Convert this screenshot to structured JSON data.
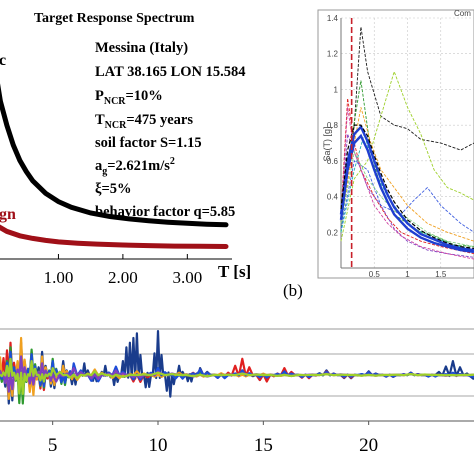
{
  "colors": {
    "background": "#ffffff",
    "elastic_curve": "#000000",
    "design_curve": "#a01018",
    "mean_spectrum": "#1f3fd0",
    "target_line": "#c8202a",
    "grid": "#c8c8c8",
    "accel_series": [
      "#1a3c8c",
      "#1d4ed8",
      "#e02020",
      "#2e9a2e",
      "#f0a020",
      "#9ed02a",
      "#8040c0",
      "#0e5a7a"
    ]
  },
  "panel_a": {
    "title": "Target Response Spectrum",
    "curve_label_elastic": "c",
    "curve_label_design": "gn",
    "info_lines": [
      "Messina (Italy)",
      "LAT 38.165 LON 15.584",
      "P_NCR=10%",
      "T_NCR=475 years",
      "soil factor S=1.15",
      "a_g=2.621m/s^2",
      "ξ=5%",
      "behavior factor q=5.85"
    ],
    "info_render": {
      "line1": "Messina (Italy)",
      "line2": "LAT 38.165 LON 15.584",
      "line3_main": "P",
      "line3_sub": "NCR",
      "line3_rest": "=10%",
      "line4_main": "T",
      "line4_sub": "NCR",
      "line4_rest": "=475 years",
      "line5": "soil factor S=1.15",
      "line6_main": "a",
      "line6_sub": "g",
      "line6_rest": "=2.621m/s",
      "line6_sup": "2",
      "line7": "ξ=5%",
      "line8": "behavior factor q=5.85"
    },
    "xlabel": "T  [s]",
    "tick_labels": [
      "1.00",
      "2.00",
      "3.00"
    ],
    "panel_letter": "(b)"
  },
  "panel_b": {
    "ylabel": "Sa(T) [g]",
    "legend_text": "Com",
    "tick_labels": [
      "1.4",
      "1.2",
      "1",
      "0.8",
      "0.6",
      "0.4",
      "0.2"
    ],
    "x_tick_labels": [
      "0.5",
      "1",
      "1.5"
    ]
  },
  "panel_c": {
    "tick_labels": [
      "5",
      "10",
      "15",
      "20"
    ]
  },
  "chart_data": [
    {
      "type": "line",
      "title": "Target Response Spectrum",
      "xlabel": "T [s]",
      "ylabel": "",
      "x_ticks": [
        1.0,
        2.0,
        3.0
      ],
      "xlim": [
        0,
        3.6
      ],
      "ylim": [
        0,
        1.0
      ],
      "series": [
        {
          "name": "",
          "style": "elastic",
          "x": [
            0.0,
            0.1,
            0.2,
            0.3,
            0.4,
            0.5,
            0.6,
            0.8,
            1.0,
            1.2,
            1.5,
            1.8,
            2.1,
            2.4,
            2.7,
            3.0,
            3.3,
            3.6
          ],
          "y": [
            0.9,
            0.72,
            0.61,
            0.52,
            0.45,
            0.4,
            0.357,
            0.3,
            0.262,
            0.236,
            0.21,
            0.194,
            0.183,
            0.175,
            0.168,
            0.163,
            0.159,
            0.156
          ]
        },
        {
          "name": "",
          "style": "design",
          "x": [
            0.0,
            0.2,
            0.4,
            0.6,
            0.8,
            1.0,
            1.3,
            1.6,
            2.0,
            2.4,
            2.8,
            3.2,
            3.6
          ],
          "y": [
            0.16,
            0.126,
            0.106,
            0.094,
            0.085,
            0.078,
            0.072,
            0.068,
            0.064,
            0.061,
            0.059,
            0.058,
            0.057
          ]
        }
      ]
    },
    {
      "type": "line",
      "title": "",
      "xlabel": "",
      "ylabel": "Sa(T) [g]",
      "legend": "top-right",
      "legend_text": "Com",
      "xlim": [
        0,
        2.0
      ],
      "ylim": [
        0,
        1.4
      ],
      "y_ticks": [
        0.2,
        0.4,
        0.6,
        0.8,
        1.0,
        1.2,
        1.4
      ],
      "x_ticks": [
        0.5,
        1.0,
        1.5
      ],
      "target_period_line_x": 0.16,
      "series": [
        {
          "name": "",
          "style": "mean",
          "x": [
            0.0,
            0.1,
            0.2,
            0.3,
            0.4,
            0.5,
            0.6,
            0.7,
            0.8,
            1.0,
            1.2,
            1.4,
            1.6,
            1.8,
            2.0
          ],
          "y": [
            0.27,
            0.55,
            0.7,
            0.74,
            0.66,
            0.55,
            0.45,
            0.37,
            0.3,
            0.22,
            0.17,
            0.14,
            0.12,
            0.1,
            0.09
          ]
        },
        {
          "name": "",
          "style": "mean",
          "x": [
            0.0,
            0.1,
            0.2,
            0.3,
            0.4,
            0.5,
            0.6,
            0.7,
            0.8,
            1.0,
            1.2,
            1.4,
            1.6,
            1.8,
            2.0
          ],
          "y": [
            0.3,
            0.6,
            0.75,
            0.79,
            0.71,
            0.6,
            0.5,
            0.41,
            0.34,
            0.25,
            0.19,
            0.16,
            0.13,
            0.11,
            0.1
          ]
        },
        {
          "name": "",
          "style": "target",
          "x": [
            0.0,
            0.1,
            0.2,
            0.3,
            0.4,
            0.5,
            0.6,
            0.7,
            0.8,
            1.0,
            1.2,
            1.4,
            1.6,
            1.8,
            2.0
          ],
          "y": [
            0.33,
            0.66,
            0.8,
            0.8,
            0.74,
            0.63,
            0.53,
            0.44,
            0.37,
            0.27,
            0.21,
            0.17,
            0.14,
            0.12,
            0.11
          ]
        },
        {
          "name": "",
          "style": "record",
          "color": "#1a1a1a",
          "x": [
            0.0,
            0.2,
            0.3,
            0.4,
            0.6,
            0.8,
            1.0,
            1.2,
            1.5,
            1.8,
            2.0
          ],
          "y": [
            0.25,
            0.8,
            1.35,
            1.1,
            0.85,
            0.8,
            0.78,
            0.72,
            0.7,
            0.66,
            0.7
          ]
        },
        {
          "name": "",
          "style": "record",
          "color": "#2e9a2e",
          "x": [
            0.0,
            0.15,
            0.3,
            0.45,
            0.6,
            0.8,
            1.0,
            1.2,
            1.4,
            1.7,
            2.0
          ],
          "y": [
            0.2,
            0.7,
            1.05,
            0.65,
            0.45,
            0.3,
            0.25,
            0.2,
            0.18,
            0.13,
            0.12
          ]
        },
        {
          "name": "",
          "style": "record",
          "color": "#9ed02a",
          "x": [
            0.0,
            0.2,
            0.4,
            0.6,
            0.8,
            1.0,
            1.2,
            1.4,
            1.6,
            1.8,
            2.0
          ],
          "y": [
            0.15,
            0.5,
            0.6,
            0.85,
            1.1,
            0.9,
            0.75,
            0.55,
            0.45,
            0.42,
            0.38
          ]
        },
        {
          "name": "",
          "style": "record",
          "color": "#e02020",
          "x": [
            0.0,
            0.1,
            0.2,
            0.3,
            0.5,
            0.7,
            0.9,
            1.2,
            1.5,
            2.0
          ],
          "y": [
            0.3,
            0.95,
            0.7,
            0.55,
            0.4,
            0.28,
            0.2,
            0.15,
            0.12,
            0.08
          ]
        },
        {
          "name": "",
          "style": "record",
          "color": "#f0a020",
          "x": [
            0.0,
            0.15,
            0.3,
            0.45,
            0.6,
            0.8,
            1.0,
            1.3,
            1.6,
            2.0
          ],
          "y": [
            0.25,
            0.6,
            0.9,
            0.7,
            0.55,
            0.45,
            0.35,
            0.25,
            0.2,
            0.15
          ]
        },
        {
          "name": "",
          "style": "record",
          "color": "#8040c0",
          "x": [
            0.0,
            0.1,
            0.25,
            0.4,
            0.6,
            0.8,
            1.0,
            1.3,
            1.6,
            2.0
          ],
          "y": [
            0.3,
            0.75,
            0.6,
            0.45,
            0.35,
            0.22,
            0.15,
            0.1,
            0.08,
            0.06
          ]
        },
        {
          "name": "",
          "style": "record",
          "color": "#20b0b0",
          "x": [
            0.0,
            0.2,
            0.35,
            0.5,
            0.7,
            0.9,
            1.1,
            1.4,
            1.7,
            2.0
          ],
          "y": [
            0.2,
            0.55,
            0.75,
            0.55,
            0.4,
            0.3,
            0.22,
            0.17,
            0.13,
            0.1
          ]
        },
        {
          "name": "",
          "style": "record",
          "color": "#d040a0",
          "x": [
            0.0,
            0.1,
            0.2,
            0.35,
            0.5,
            0.7,
            0.9,
            1.2,
            1.6,
            2.0
          ],
          "y": [
            0.28,
            0.9,
            0.65,
            0.5,
            0.35,
            0.25,
            0.18,
            0.12,
            0.08,
            0.05
          ]
        },
        {
          "name": "",
          "style": "record",
          "color": "#4060e0",
          "x": [
            0.0,
            0.2,
            0.4,
            0.6,
            0.9,
            1.1,
            1.3,
            1.5,
            1.8,
            2.0
          ],
          "y": [
            0.22,
            0.6,
            0.55,
            0.35,
            0.3,
            0.38,
            0.45,
            0.35,
            0.25,
            0.2
          ]
        },
        {
          "name": "",
          "style": "record",
          "color": "#80d080",
          "x": [
            0.0,
            0.2,
            0.4,
            0.6,
            0.8,
            1.0,
            1.3,
            1.6,
            2.0
          ],
          "y": [
            0.25,
            0.65,
            0.5,
            0.4,
            0.32,
            0.28,
            0.2,
            0.15,
            0.12
          ]
        }
      ]
    },
    {
      "type": "line",
      "title": "",
      "xlabel": "",
      "ylabel": "",
      "x_ticks": [
        5,
        10,
        15,
        20
      ],
      "xlim": [
        2.5,
        25
      ],
      "ylim": [
        -1,
        1
      ],
      "series": [
        {
          "name": "",
          "style": "accelerogram",
          "color": "#1a3c8c",
          "x": [
            2.5,
            3.0,
            3.5,
            4.0,
            4.5,
            5.0,
            5.5,
            6.0,
            6.5,
            7.0,
            7.5,
            8.0,
            8.5,
            9.0,
            9.5,
            10.0,
            10.5,
            11.0,
            11.5,
            12.0,
            13.0,
            14.0,
            15.0,
            16.0,
            17.0,
            18.0,
            19.0,
            20.0,
            21.0,
            22.0,
            23.0,
            24.0,
            25.0
          ],
          "y": [
            0.3,
            -0.8,
            0.7,
            -0.5,
            0.5,
            -0.4,
            0.3,
            -0.3,
            0.25,
            -0.2,
            0.2,
            -0.3,
            0.6,
            0.9,
            -0.5,
            0.95,
            -0.6,
            0.2,
            -0.2,
            0.15,
            -0.1,
            0.1,
            -0.15,
            0.1,
            -0.08,
            0.1,
            -0.1,
            0.08,
            -0.06,
            0.05,
            -0.05,
            0.3,
            -0.1
          ]
        },
        {
          "name": "",
          "style": "accelerogram",
          "color": "#e02020",
          "x": [
            2.5,
            3.0,
            3.5,
            4.0,
            4.5,
            5.0,
            5.5,
            6.0,
            7.0,
            8.0,
            9.0,
            10.0,
            11.0,
            12.0,
            13.0,
            14.0,
            15.0,
            16.0,
            17.0,
            18.0,
            19.0,
            20.0,
            21.0,
            22.0,
            23.0,
            24.0,
            25.0
          ],
          "y": [
            0.2,
            0.7,
            -0.6,
            0.5,
            -0.45,
            0.3,
            -0.25,
            0.2,
            -0.15,
            0.15,
            -0.2,
            0.1,
            -0.1,
            0.12,
            -0.1,
            0.35,
            -0.2,
            0.15,
            -0.1,
            0.08,
            -0.08,
            0.06,
            -0.05,
            0.05,
            -0.04,
            0.04,
            -0.03
          ]
        },
        {
          "name": "",
          "style": "accelerogram",
          "color": "#2e9a2e",
          "x": [
            2.5,
            3.0,
            3.5,
            4.0,
            4.5,
            5.0,
            5.5,
            6.0,
            7.0,
            8.0,
            9.0,
            10.0,
            11.0,
            12.0,
            13.0,
            14.0,
            15.0,
            16.0,
            17.0,
            18.0,
            19.0,
            20.0,
            21.0,
            22.0,
            23.0,
            24.0,
            25.0
          ],
          "y": [
            -0.3,
            0.6,
            -0.85,
            0.55,
            -0.4,
            0.35,
            -0.3,
            0.2,
            -0.18,
            0.15,
            -0.12,
            0.1,
            -0.08,
            0.07,
            -0.06,
            0.06,
            -0.05,
            0.04,
            -0.04,
            0.03,
            -0.03,
            0.03,
            -0.02,
            0.02,
            -0.02,
            0.02,
            -0.02
          ]
        },
        {
          "name": "",
          "style": "accelerogram",
          "color": "#f0a020",
          "x": [
            2.5,
            3.0,
            3.5,
            4.0,
            4.5,
            5.0,
            5.5,
            6.0,
            7.0,
            8.0,
            9.0,
            10.0,
            11.0,
            12.0,
            13.0,
            14.0,
            15.0,
            16.0,
            18.0,
            20.0,
            22.0,
            24.0,
            25.0
          ],
          "y": [
            0.4,
            -0.7,
            0.8,
            -0.6,
            0.4,
            -0.3,
            0.2,
            -0.15,
            0.12,
            -0.1,
            0.08,
            -0.06,
            0.05,
            -0.05,
            0.04,
            -0.04,
            0.03,
            -0.03,
            0.02,
            -0.02,
            0.02,
            -0.02,
            0.01
          ]
        },
        {
          "name": "",
          "style": "accelerogram",
          "color": "#1d4ed8",
          "x": [
            2.5,
            3.0,
            3.5,
            4.0,
            4.5,
            5.0,
            5.5,
            6.0,
            7.0,
            8.0,
            9.0,
            10.0,
            11.0,
            12.0,
            13.0,
            14.0,
            15.0,
            16.0,
            17.0,
            18.0,
            19.0,
            20.0,
            21.0,
            22.0,
            23.0,
            24.0,
            25.0
          ],
          "y": [
            -0.2,
            0.5,
            -0.5,
            0.45,
            -0.35,
            0.3,
            -0.25,
            0.25,
            -0.2,
            0.18,
            -0.15,
            0.15,
            -0.12,
            0.12,
            -0.1,
            0.1,
            -0.08,
            0.08,
            -0.07,
            0.07,
            -0.06,
            0.06,
            -0.05,
            0.05,
            -0.05,
            0.05,
            -0.04
          ]
        },
        {
          "name": "",
          "style": "accelerogram",
          "color": "#8040c0",
          "x": [
            2.5,
            3.0,
            3.5,
            4.0,
            4.5,
            5.0,
            6.0,
            7.0,
            8.0,
            9.0,
            10.0,
            12.0,
            14.0,
            16.0,
            18.0,
            20.0,
            22.0,
            24.0,
            25.0
          ],
          "y": [
            0.1,
            -0.45,
            0.4,
            -0.3,
            0.25,
            -0.2,
            0.15,
            -0.12,
            0.1,
            -0.08,
            0.07,
            -0.05,
            0.04,
            -0.03,
            0.03,
            -0.02,
            0.02,
            -0.02,
            0.01
          ]
        },
        {
          "name": "",
          "style": "accelerogram",
          "color": "#9ed02a",
          "x": [
            2.5,
            3.0,
            3.5,
            4.0,
            4.5,
            5.0,
            6.0,
            7.0,
            8.0,
            10.0,
            12.0,
            14.0,
            16.0,
            18.0,
            20.0,
            22.0,
            24.0,
            25.0
          ],
          "y": [
            -0.1,
            0.35,
            -0.55,
            0.3,
            -0.2,
            0.15,
            -0.1,
            0.08,
            -0.06,
            0.05,
            -0.04,
            0.03,
            -0.03,
            0.02,
            -0.02,
            0.02,
            -0.01,
            0.01
          ]
        }
      ]
    }
  ]
}
